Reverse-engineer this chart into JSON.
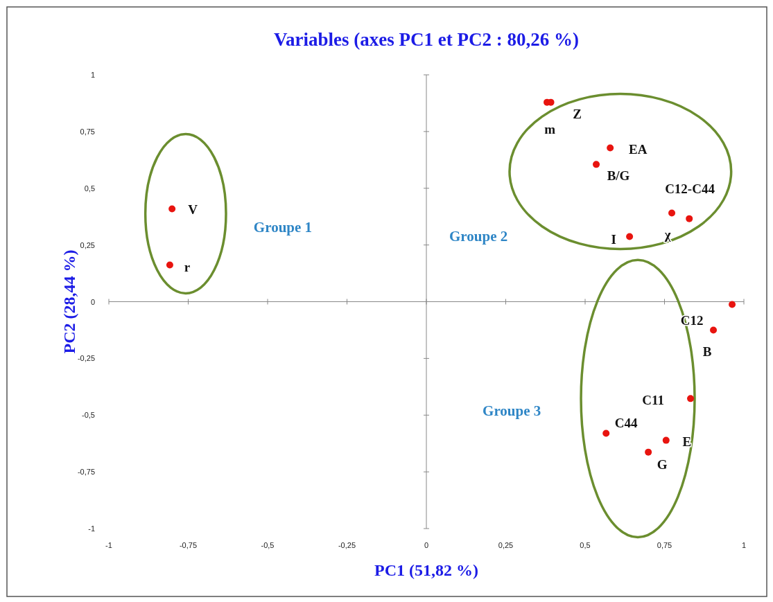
{
  "chart_data": {
    "type": "scatter",
    "title": "Variables (axes PC1 et PC2 : 80,26 %)",
    "xlabel": "PC1 (51,82 %)",
    "ylabel": "PC2 (28,44 %)",
    "x": [
      -0.801,
      -0.808,
      0.38,
      0.392,
      0.579,
      0.535,
      0.773,
      0.828,
      0.64,
      0.963,
      0.904,
      0.832,
      0.566,
      0.755,
      0.699
    ],
    "values": [
      0.409,
      0.162,
      0.879,
      0.879,
      0.678,
      0.605,
      0.391,
      0.366,
      0.287,
      -0.012,
      -0.125,
      -0.427,
      -0.58,
      -0.611,
      -0.663
    ],
    "color": "#e8140f",
    "marker": "circle",
    "xlim": [
      -1,
      1
    ],
    "ylim": [
      -1,
      1
    ],
    "xticks": [
      {
        "value": -1,
        "label": "-1"
      },
      {
        "value": -0.75,
        "label": "-0,75"
      },
      {
        "value": -0.5,
        "label": "-0,5"
      },
      {
        "value": -0.25,
        "label": "-0,25"
      },
      {
        "value": 0,
        "label": "0"
      },
      {
        "value": 0.25,
        "label": "0,25"
      },
      {
        "value": 0.5,
        "label": "0,5"
      },
      {
        "value": 0.75,
        "label": "0,75"
      },
      {
        "value": 1,
        "label": "1"
      }
    ],
    "yticks": [
      {
        "value": -1,
        "label": "-1"
      },
      {
        "value": -0.75,
        "label": "-0,75"
      },
      {
        "value": -0.5,
        "label": "-0,5"
      },
      {
        "value": -0.25,
        "label": "-0,25"
      },
      {
        "value": 0,
        "label": "0"
      },
      {
        "value": 0.25,
        "label": "0,25"
      },
      {
        "value": 0.5,
        "label": "0,5"
      },
      {
        "value": 0.75,
        "label": "0,75"
      },
      {
        "value": 1,
        "label": "1"
      }
    ],
    "annotations": [
      {
        "text": "V",
        "x": -0.801,
        "y": 0.409
      },
      {
        "text": "r",
        "x": -0.808,
        "y": 0.162
      },
      {
        "text": "m",
        "x": 0.38,
        "y": 0.879
      },
      {
        "text": "Z",
        "x": 0.392,
        "y": 0.879
      },
      {
        "text": "EA",
        "x": 0.579,
        "y": 0.678
      },
      {
        "text": "B/G",
        "x": 0.535,
        "y": 0.605
      },
      {
        "text": "C12-C44",
        "x": 0.773,
        "y": 0.391
      },
      {
        "text": "χ",
        "x": 0.828,
        "y": 0.366
      },
      {
        "text": "I",
        "x": 0.64,
        "y": 0.287
      },
      {
        "text": "C12",
        "x": 0.963,
        "y": -0.012
      },
      {
        "text": "B",
        "x": 0.904,
        "y": -0.125
      },
      {
        "text": "C11",
        "x": 0.832,
        "y": -0.427
      },
      {
        "text": "C44",
        "x": 0.566,
        "y": -0.58
      },
      {
        "text": "E",
        "x": 0.755,
        "y": -0.611
      },
      {
        "text": "G",
        "x": 0.699,
        "y": -0.663
      },
      "Groupe 1",
      "Groupe 2",
      "Groupe 3"
    ]
  }
}
